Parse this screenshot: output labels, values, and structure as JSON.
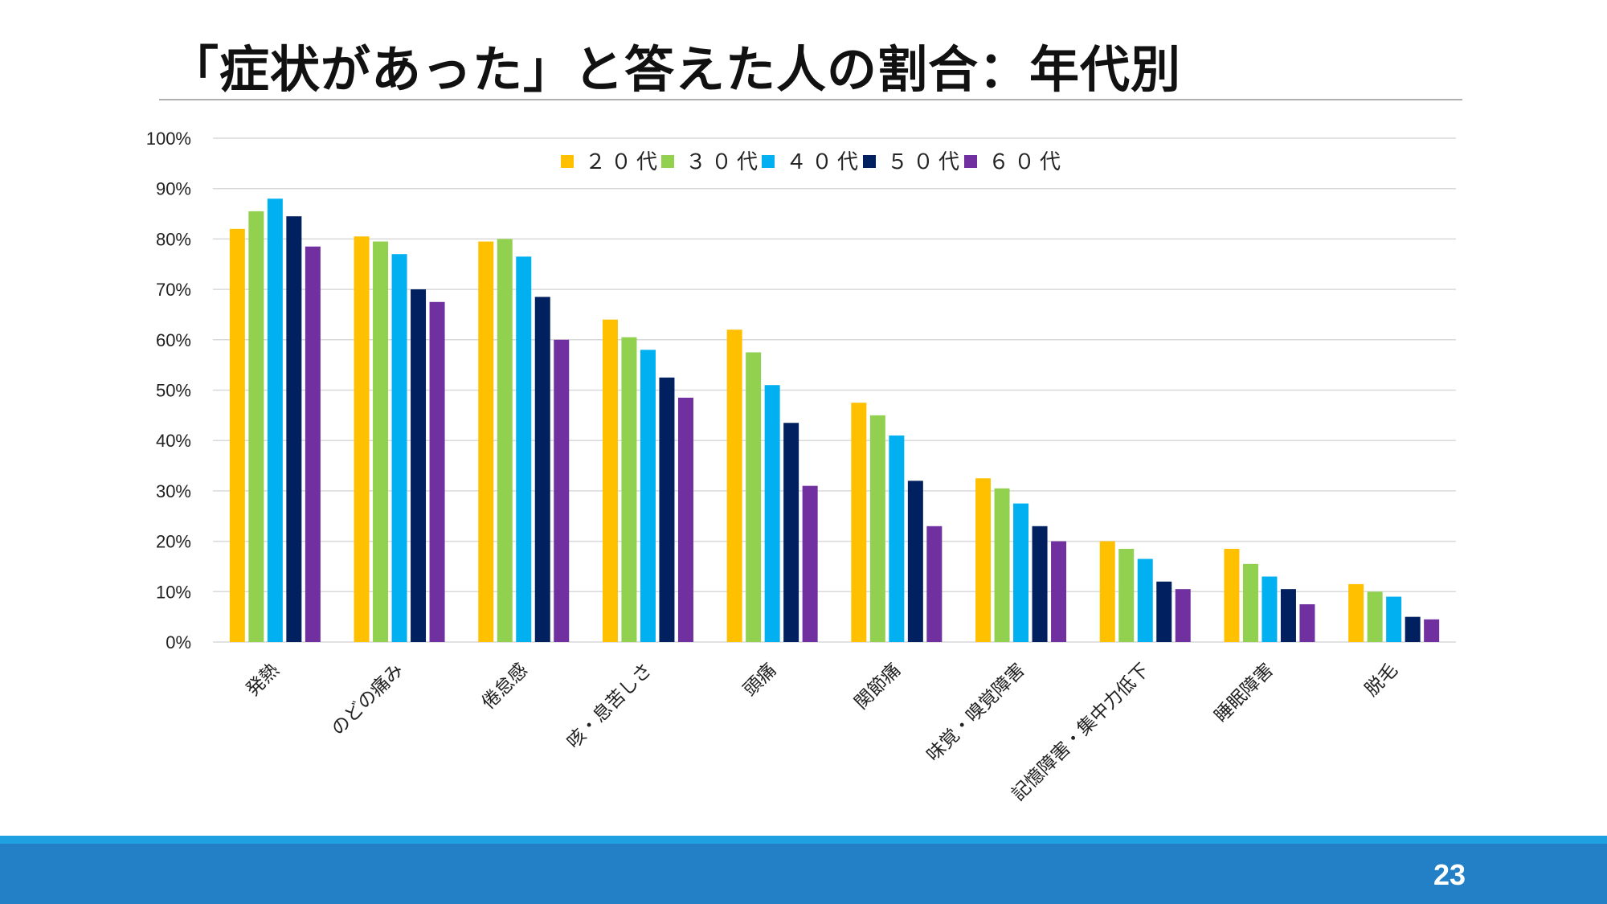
{
  "slide": {
    "title": "「症状があった」と答えた人の割合：年代別",
    "page_number": "23"
  },
  "colors": {
    "series": [
      "#FFC000",
      "#92D050",
      "#00B0F0",
      "#002060",
      "#7030A0"
    ],
    "gridline": "#d9d9d9",
    "footer_accent": "#1fa0e0",
    "footer": "#2480c6"
  },
  "chart_data": {
    "type": "bar",
    "title": "",
    "xlabel": "",
    "ylabel": "",
    "ylim": [
      0,
      100
    ],
    "y_unit": "%",
    "y_ticks": [
      "0%",
      "10%",
      "20%",
      "30%",
      "40%",
      "50%",
      "60%",
      "70%",
      "80%",
      "90%",
      "100%"
    ],
    "grid": true,
    "legend_position": "top-center",
    "categories": [
      "発熱",
      "のどの痛み",
      "倦怠感",
      "咳・息苦しさ",
      "頭痛",
      "関節痛",
      "味覚・嗅覚障害",
      "記憶障害・集中力低下",
      "睡眠障害",
      "脱毛"
    ],
    "series": [
      {
        "name": "２０代",
        "values": [
          82,
          80.5,
          79.5,
          64,
          62,
          47.5,
          32.5,
          20,
          18.5,
          11.5
        ]
      },
      {
        "name": "３０代",
        "values": [
          85.5,
          79.5,
          80,
          60.5,
          57.5,
          45,
          30.5,
          18.5,
          15.5,
          10
        ]
      },
      {
        "name": "４０代",
        "values": [
          88,
          77,
          76.5,
          58,
          51,
          41,
          27.5,
          16.5,
          13,
          9
        ]
      },
      {
        "name": "５０代",
        "values": [
          84.5,
          70,
          68.5,
          52.5,
          43.5,
          32,
          23,
          12,
          10.5,
          5
        ]
      },
      {
        "name": "６０代",
        "values": [
          78.5,
          67.5,
          60,
          48.5,
          31,
          23,
          20,
          10.5,
          7.5,
          4.5
        ]
      }
    ]
  }
}
